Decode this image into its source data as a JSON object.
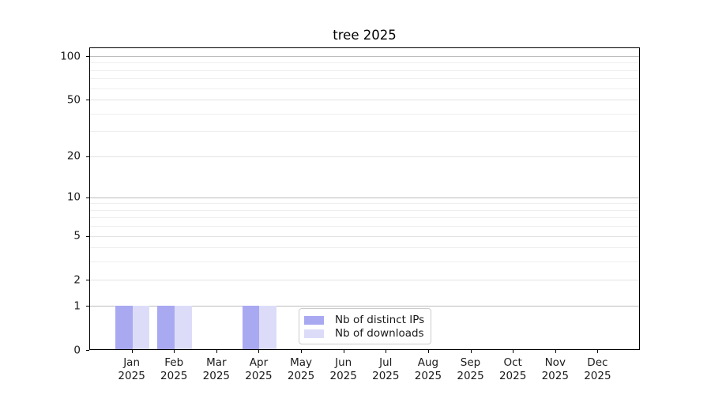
{
  "chart_data": {
    "type": "bar",
    "title": "tree 2025",
    "categories": [
      "Jan",
      "Feb",
      "Mar",
      "Apr",
      "May",
      "Jun",
      "Jul",
      "Aug",
      "Sep",
      "Oct",
      "Nov",
      "Dec"
    ],
    "category_year": "2025",
    "series": [
      {
        "name": "Nb of distinct IPs",
        "color": "#a9a9f2",
        "values": [
          1,
          1,
          0,
          1,
          0,
          0,
          0,
          0,
          0,
          0,
          0,
          0
        ]
      },
      {
        "name": "Nb of downloads",
        "color": "#dcdcf9",
        "values": [
          1,
          1,
          0,
          1,
          0,
          0,
          0,
          0,
          0,
          0,
          0,
          0
        ]
      }
    ],
    "xlabel": "",
    "ylabel": "",
    "yscale": "log1p",
    "ylim": [
      0,
      115
    ],
    "y_ticks": [
      0,
      1,
      2,
      5,
      10,
      20,
      50,
      100
    ],
    "y_minor_gridlines": [
      3,
      4,
      6,
      7,
      8,
      9,
      30,
      40,
      60,
      70,
      80,
      90
    ],
    "grid": "horizontal",
    "legend_position": "lower-center-left"
  },
  "colors": {
    "decade_grid": "#bdbdbd",
    "labeled_grid": "#e3e3e3",
    "minor_grid": "#eeeeee",
    "axis_line": "#000000",
    "text": "#1a1a1a",
    "legend_border": "#cccccc"
  }
}
